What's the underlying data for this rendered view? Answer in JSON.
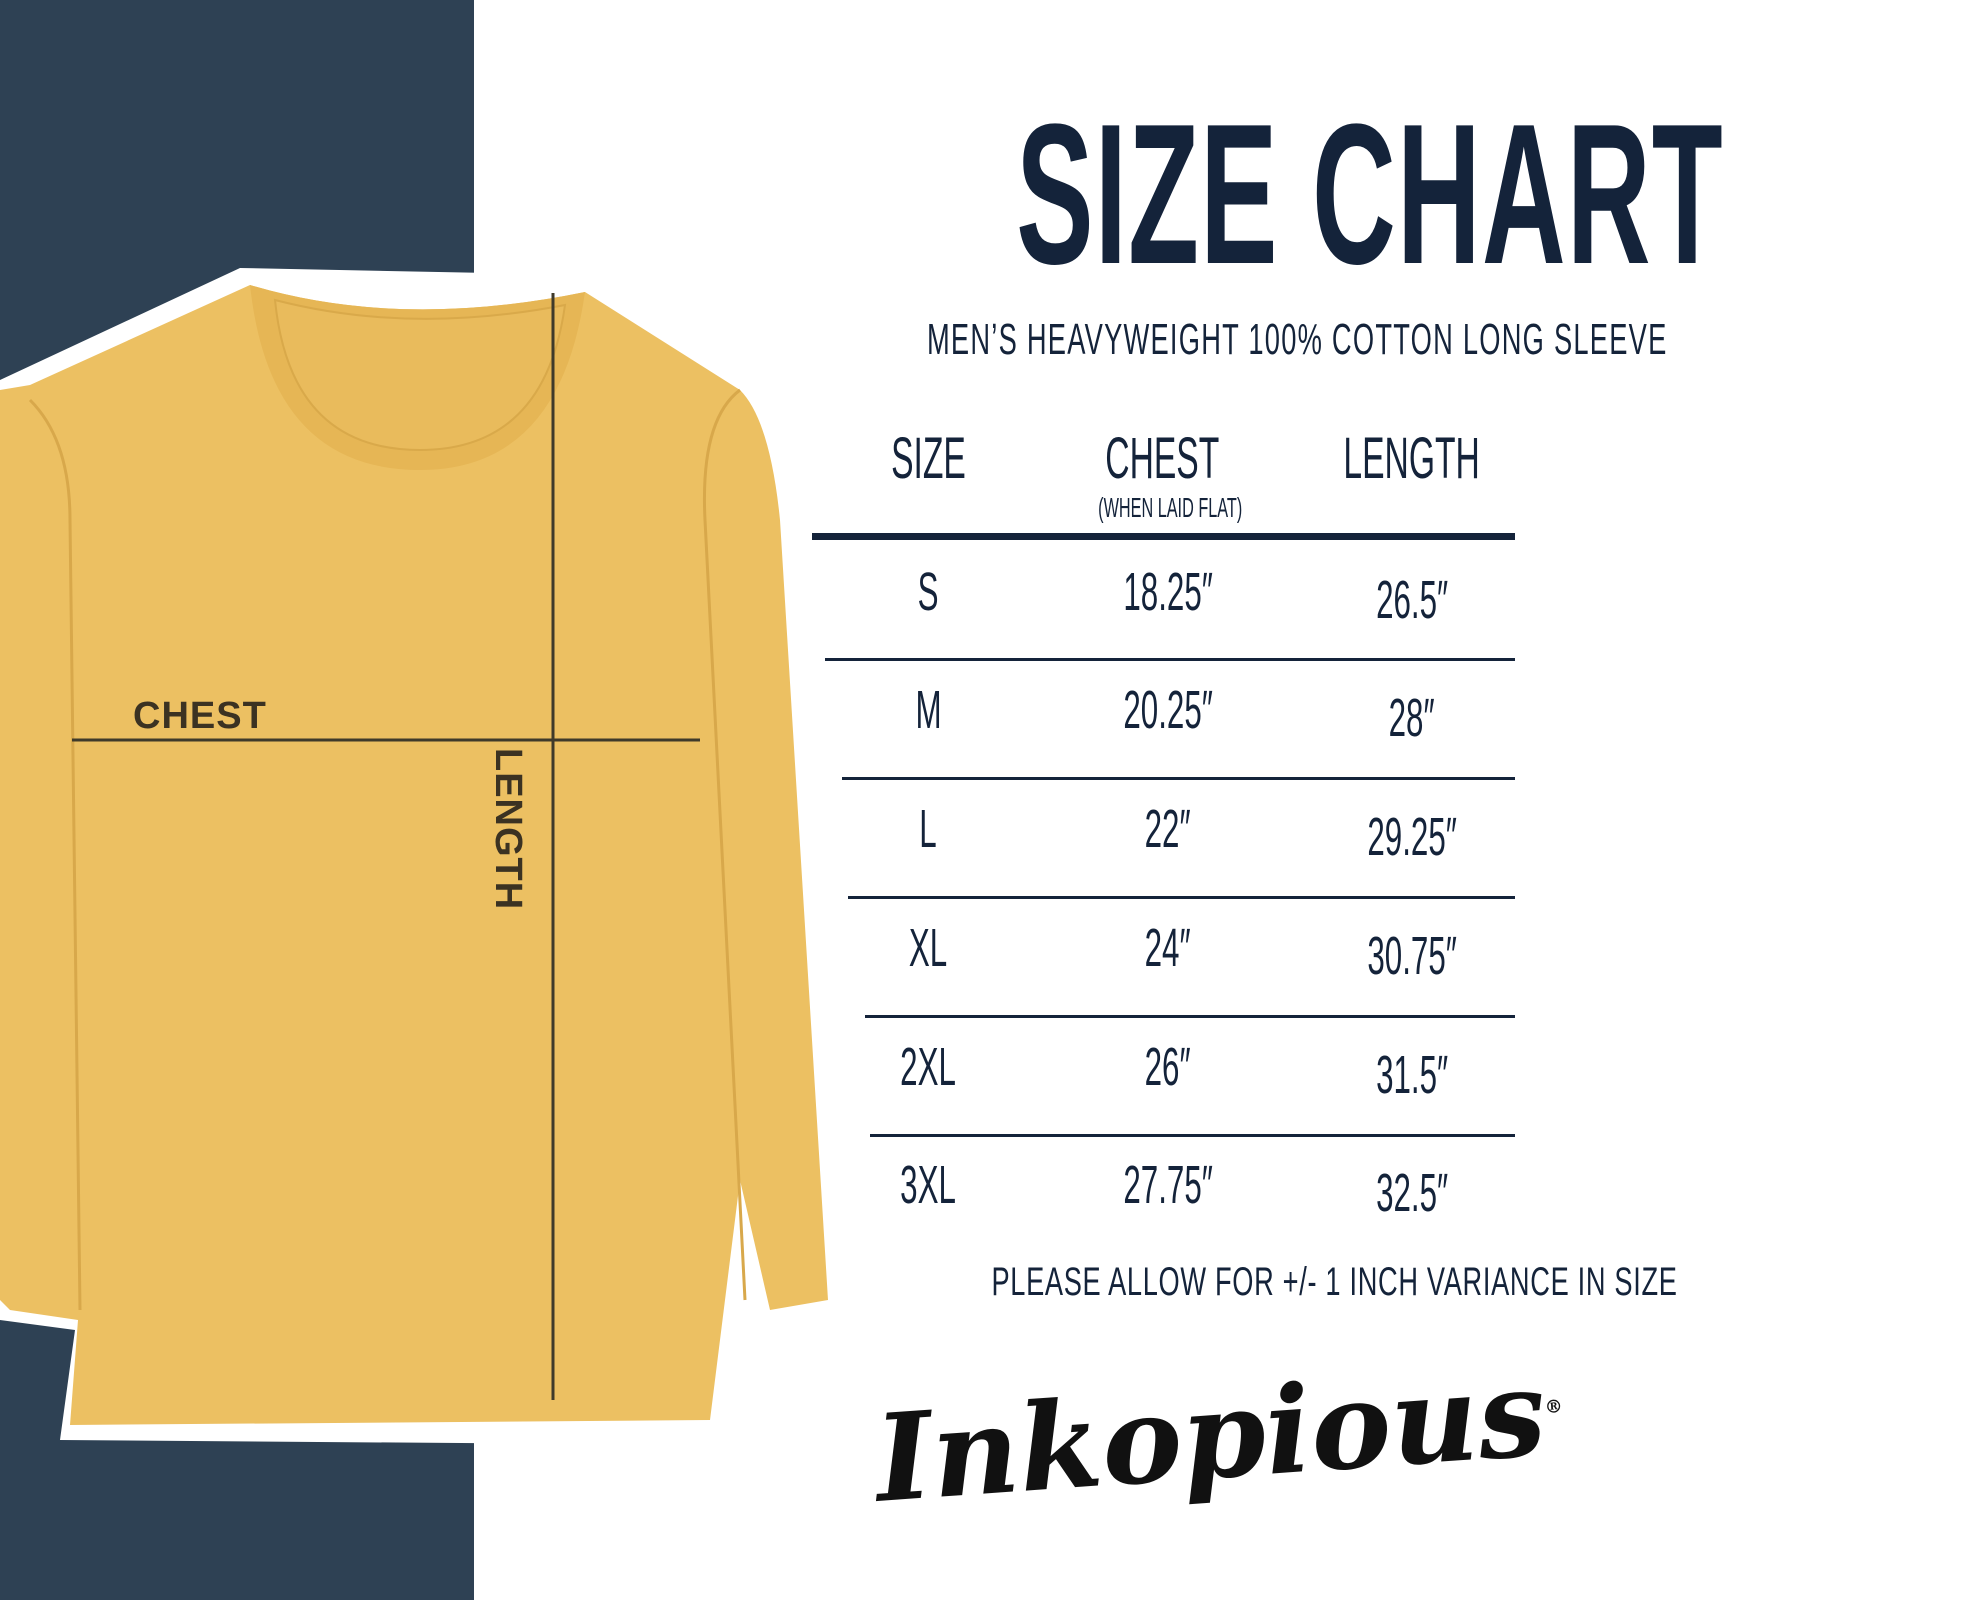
{
  "title": "SIZE CHART",
  "subtitle": "MEN’S HEAVYWEIGHT 100% COTTON LONG SLEEVE",
  "colors": {
    "navy_panel": "#2e4154",
    "text": "#14233a",
    "shirt": "#ecc062"
  },
  "shirt_labels": {
    "chest": "CHEST",
    "length": "LENGTH"
  },
  "table": {
    "headers": {
      "size": "SIZE",
      "chest": "CHEST",
      "chest_note": "(WHEN LAID FLAT)",
      "length": "LENGTH"
    },
    "rows": [
      {
        "size": "S",
        "chest": "18.25″",
        "length": "26.5″"
      },
      {
        "size": "M",
        "chest": "20.25″",
        "length": "28″"
      },
      {
        "size": "L",
        "chest": "22″",
        "length": "29.25″"
      },
      {
        "size": "XL",
        "chest": "24″",
        "length": "30.75″"
      },
      {
        "size": "2XL",
        "chest": "26″",
        "length": "31.5″"
      },
      {
        "size": "3XL",
        "chest": "27.75″",
        "length": "32.5″"
      }
    ]
  },
  "note": "PLEASE ALLOW FOR +/- 1 INCH VARIANCE IN SIZE",
  "logo": {
    "text": "Inkopious",
    "mark": "®"
  }
}
